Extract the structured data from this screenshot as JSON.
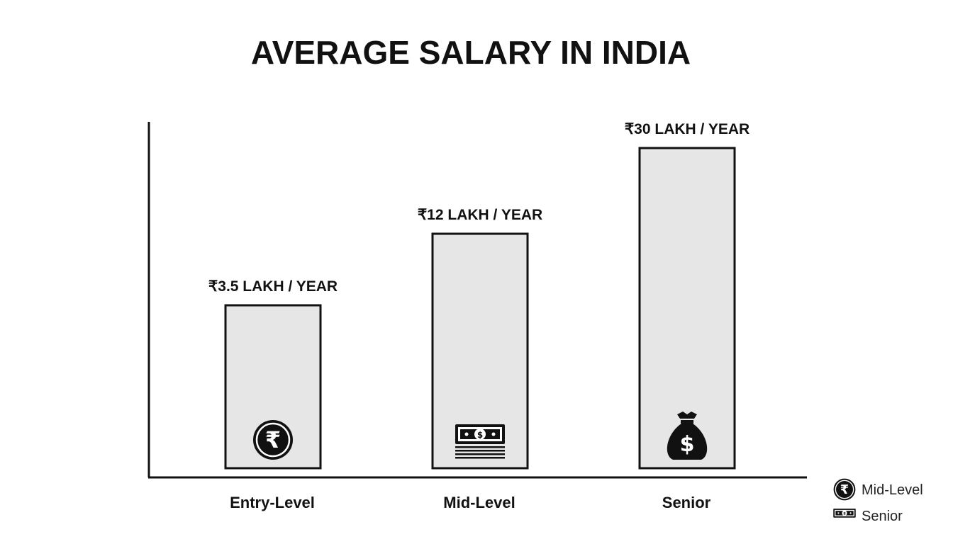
{
  "chart_data": {
    "type": "bar",
    "title": "AVERAGE SALARY IN INDIA",
    "xlabel": "",
    "ylabel": "",
    "unit": "LAKH / YEAR",
    "categories": [
      "Entry-Level",
      "Mid-Level",
      "Senior"
    ],
    "values": [
      3.5,
      12,
      30
    ],
    "data_labels": [
      "₹3.5 LAKH / YEAR",
      "₹12 LAKH / YEAR",
      "₹30 LAKH / YEAR"
    ],
    "bar_icons": [
      "rupee-coin-icon",
      "banknote-stack-icon",
      "money-bag-icon"
    ],
    "ylim": [
      0,
      30
    ],
    "grid": false,
    "legend": {
      "placement": "bottom-right",
      "entries": [
        {
          "label": "Mid-Level",
          "icon": "rupee-coin-icon"
        },
        {
          "label": "Senior",
          "icon": "banknote-icon"
        }
      ]
    },
    "colors": {
      "bar_fill": "#e6e6e6",
      "bar_stroke": "#111111",
      "axis": "#111111",
      "text": "#111111"
    }
  }
}
